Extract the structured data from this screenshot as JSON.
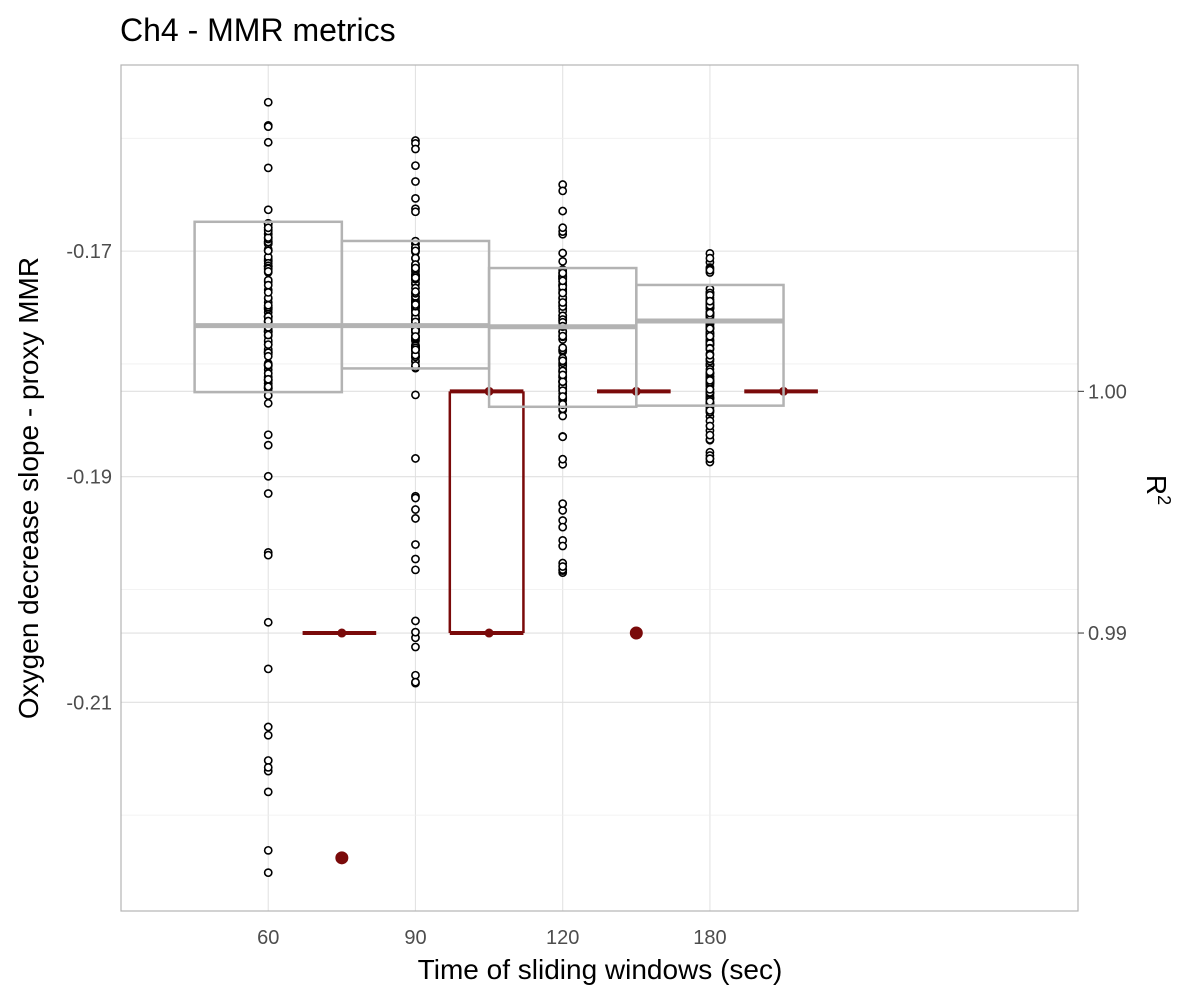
{
  "chart_data": {
    "type": "boxplot",
    "title": "Ch4 - MMR metrics",
    "xlabel": "Time of sliding windows (sec)",
    "ylabel": "Oxygen decrease slope - proxy MMR",
    "y2label": "R",
    "y2label_sup": "2",
    "categories": [
      "60",
      "90",
      "120",
      "180"
    ],
    "y_ticks": [
      "-0.17",
      "-0.19",
      "-0.21"
    ],
    "y2_ticks": [
      "1.00",
      "0.99"
    ],
    "ylim": [
      -0.2285,
      -0.1535
    ],
    "y2lim": [
      0.9785,
      1.0135
    ],
    "grid": true,
    "series": [
      {
        "name": "slope",
        "kind": "boxplot",
        "color": "#b3b3b3",
        "boxes": [
          {
            "category": "60",
            "q1": -0.1825,
            "median": -0.1766,
            "q3": -0.1674,
            "points_min": -0.2251,
            "points_max": -0.1568
          },
          {
            "category": "90",
            "q1": -0.1804,
            "median": -0.1766,
            "q3": -0.1691,
            "points_min": -0.2083,
            "points_max": -0.1602
          },
          {
            "category": "120",
            "q1": -0.1838,
            "median": -0.1767,
            "q3": -0.1715,
            "points_min": -0.1985,
            "points_max": -0.1641
          },
          {
            "category": "180",
            "q1": -0.1837,
            "median": -0.1762,
            "q3": -0.173,
            "points_min": -0.1887,
            "points_max": -0.1702
          }
        ]
      },
      {
        "name": "R2",
        "kind": "step",
        "color": "#7a0a0a",
        "segments": [
          {
            "x_start": 67,
            "x_end": 82,
            "y": 0.99
          },
          {
            "x_start": 97,
            "x_end": 112,
            "y": 1.0
          },
          {
            "x_start": 97,
            "x_end": 112,
            "y": 0.99
          },
          {
            "x_start": 127,
            "x_end": 142,
            "y": 1.0
          },
          {
            "x_start": 157,
            "x_end": 172,
            "y": 1.0
          }
        ],
        "points": [
          {
            "x": 75,
            "y": 0.99,
            "large": false
          },
          {
            "x": 75,
            "y": 0.9807,
            "large": true
          },
          {
            "x": 105,
            "y": 1.0,
            "large": false
          },
          {
            "x": 105,
            "y": 0.99,
            "large": false
          },
          {
            "x": 135,
            "y": 1.0,
            "large": false
          },
          {
            "x": 135,
            "y": 0.99,
            "large": true
          },
          {
            "x": 165,
            "y": 1.0,
            "large": false
          }
        ]
      }
    ]
  }
}
